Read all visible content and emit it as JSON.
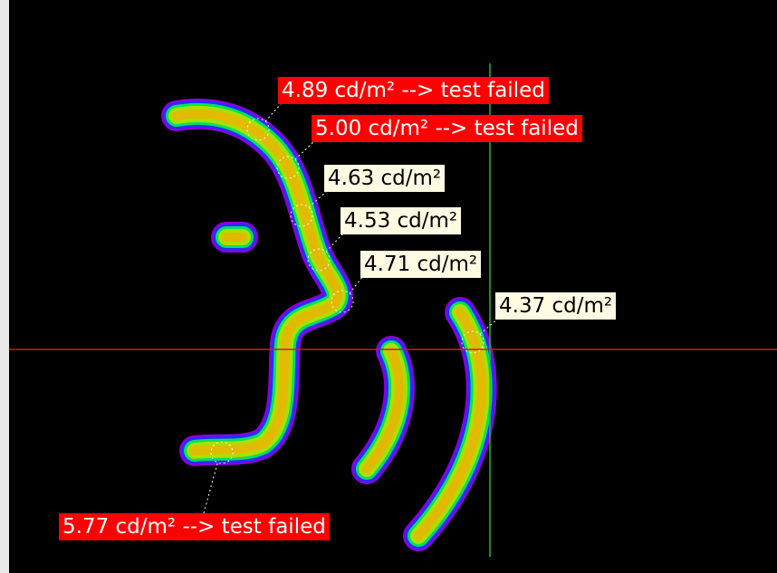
{
  "measurements": [
    {
      "label": "4.89 cd/m² --> test failed"
    },
    {
      "label": "5.00 cd/m² --> test failed"
    },
    {
      "label": "4.63 cd/m²"
    },
    {
      "label": "4.53 cd/m²"
    },
    {
      "label": "4.71 cd/m²"
    },
    {
      "label": "4.37 cd/m²"
    },
    {
      "label": "5.77 cd/m² --> test failed"
    }
  ]
}
